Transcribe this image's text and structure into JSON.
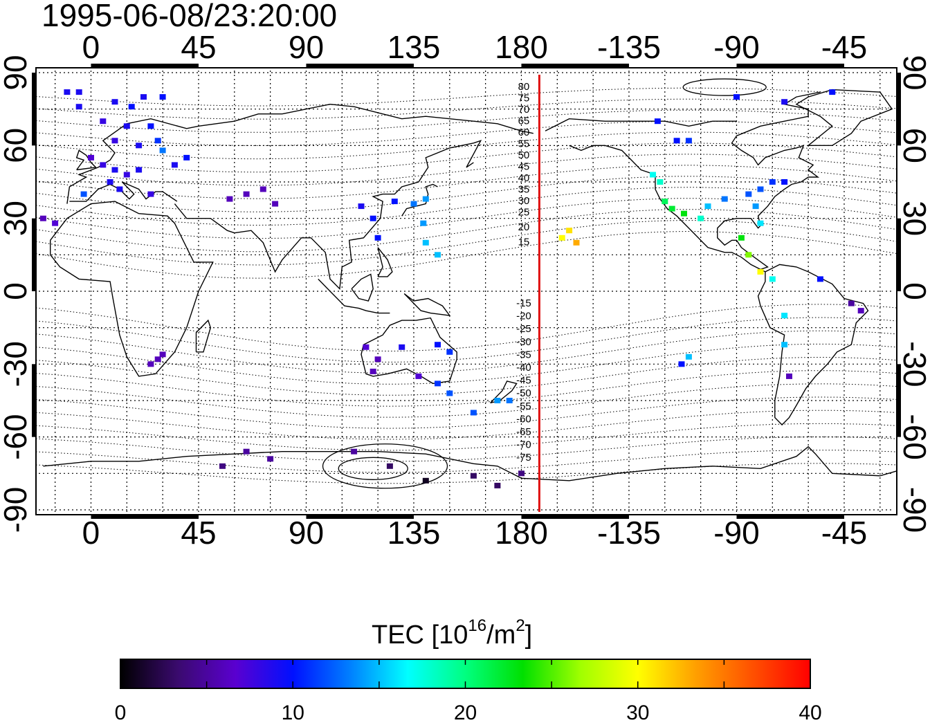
{
  "title": "1995-06-08/23:20:00",
  "map": {
    "lon_ticks": [
      "0",
      "45",
      "90",
      "135",
      "180",
      "-135",
      "-90",
      "-45"
    ],
    "lon_tick_values": [
      0,
      45,
      90,
      135,
      180,
      225,
      270,
      315
    ],
    "lat_ticks": [
      "90",
      "60",
      "30",
      "0",
      "-30",
      "-60",
      "-90"
    ],
    "lat_tick_values": [
      90,
      60,
      30,
      0,
      -30,
      -60,
      -90
    ],
    "lon_range": [
      -23,
      337
    ],
    "lat_range": [
      -92,
      92
    ],
    "grid": true,
    "grid_spacing_deg": 15,
    "terminator_lon": 187.5,
    "terminator_color": "#e01010",
    "mlat_labels_north": [
      "80",
      "75",
      "70",
      "65",
      "60",
      "55",
      "50",
      "45",
      "40",
      "35",
      "30",
      "25",
      "20",
      "15"
    ],
    "mlat_labels_south": [
      "-15",
      "-20",
      "-25",
      "-30",
      "-35",
      "-40",
      "-45",
      "-50",
      "-55",
      "-60",
      "-65",
      "-70",
      "-75"
    ]
  },
  "colorbar": {
    "title_main": "TEC  [10",
    "title_sup": "16",
    "title_mid": "/m",
    "title_sup2": "2",
    "title_end": "]",
    "ticks": [
      "0",
      "10",
      "20",
      "30",
      "40"
    ],
    "tick_values": [
      0,
      10,
      20,
      30,
      40
    ],
    "range": [
      0,
      40
    ],
    "colors": [
      "#000000",
      "#3a0a6e",
      "#5a00d0",
      "#0010ff",
      "#0080ff",
      "#00ffff",
      "#00ff80",
      "#00e000",
      "#a0ff00",
      "#ffff00",
      "#ffa000",
      "#ff5000",
      "#ff0000"
    ]
  },
  "chart_data": {
    "type": "heatmap",
    "description_units": "lon (deg east, 0-360), lat (deg), TEC (1e16/m^2)",
    "cells": [
      {
        "lon": -10,
        "lat": 82,
        "tec": 9
      },
      {
        "lon": -5,
        "lat": 82,
        "tec": 9
      },
      {
        "lon": 22,
        "lat": 80,
        "tec": 9
      },
      {
        "lon": 30,
        "lat": 80,
        "tec": 10
      },
      {
        "lon": 10,
        "lat": 78,
        "tec": 9
      },
      {
        "lon": 17,
        "lat": 76,
        "tec": 10
      },
      {
        "lon": -5,
        "lat": 76,
        "tec": 9
      },
      {
        "lon": 5,
        "lat": 70,
        "tec": 8
      },
      {
        "lon": 15,
        "lat": 68,
        "tec": 9
      },
      {
        "lon": 25,
        "lat": 68,
        "tec": 10
      },
      {
        "lon": 10,
        "lat": 62,
        "tec": 8
      },
      {
        "lon": 20,
        "lat": 60,
        "tec": 9
      },
      {
        "lon": 28,
        "lat": 62,
        "tec": 11
      },
      {
        "lon": 0,
        "lat": 55,
        "tec": 7
      },
      {
        "lon": 5,
        "lat": 52,
        "tec": 8
      },
      {
        "lon": 10,
        "lat": 50,
        "tec": 9
      },
      {
        "lon": 15,
        "lat": 48,
        "tec": 8
      },
      {
        "lon": 20,
        "lat": 50,
        "tec": 9
      },
      {
        "lon": 8,
        "lat": 45,
        "tec": 9
      },
      {
        "lon": -3,
        "lat": 40,
        "tec": 12
      },
      {
        "lon": 12,
        "lat": 42,
        "tec": 9
      },
      {
        "lon": 25,
        "lat": 40,
        "tec": 8
      },
      {
        "lon": -15,
        "lat": 28,
        "tec": 7
      },
      {
        "lon": -20,
        "lat": 30,
        "tec": 6
      },
      {
        "lon": 30,
        "lat": 58,
        "tec": 13
      },
      {
        "lon": 40,
        "lat": 55,
        "tec": 10
      },
      {
        "lon": 35,
        "lat": 52,
        "tec": 9
      },
      {
        "lon": 58,
        "lat": 38,
        "tec": 6
      },
      {
        "lon": 65,
        "lat": 40,
        "tec": 6
      },
      {
        "lon": 72,
        "lat": 42,
        "tec": 6
      },
      {
        "lon": 77,
        "lat": 36,
        "tec": 6
      },
      {
        "lon": 113,
        "lat": 35,
        "tec": 9
      },
      {
        "lon": 118,
        "lat": 30,
        "tec": 10
      },
      {
        "lon": 120,
        "lat": 22,
        "tec": 10
      },
      {
        "lon": 127,
        "lat": 37,
        "tec": 10
      },
      {
        "lon": 135,
        "lat": 36,
        "tec": 13
      },
      {
        "lon": 140,
        "lat": 38,
        "tec": 14
      },
      {
        "lon": 139,
        "lat": 28,
        "tec": 14
      },
      {
        "lon": 140,
        "lat": 20,
        "tec": 15
      },
      {
        "lon": 145,
        "lat": 15,
        "tec": 15
      },
      {
        "lon": 115,
        "lat": -23,
        "tec": 7
      },
      {
        "lon": 120,
        "lat": -28,
        "tec": 6
      },
      {
        "lon": 118,
        "lat": -33,
        "tec": 6
      },
      {
        "lon": 130,
        "lat": -23,
        "tec": 9
      },
      {
        "lon": 137,
        "lat": -35,
        "tec": 7
      },
      {
        "lon": 145,
        "lat": -22,
        "tec": 10
      },
      {
        "lon": 150,
        "lat": -25,
        "tec": 11
      },
      {
        "lon": 145,
        "lat": -38,
        "tec": 11
      },
      {
        "lon": 150,
        "lat": -42,
        "tec": 12
      },
      {
        "lon": 170,
        "lat": -45,
        "tec": 14
      },
      {
        "lon": 175,
        "lat": -45,
        "tec": 13
      },
      {
        "lon": 160,
        "lat": -50,
        "tec": 12
      },
      {
        "lon": 28,
        "lat": -28,
        "tec": 6
      },
      {
        "lon": 25,
        "lat": -30,
        "tec": 6
      },
      {
        "lon": 30,
        "lat": -26,
        "tec": 6
      },
      {
        "lon": 65,
        "lat": -66,
        "tec": 5
      },
      {
        "lon": 75,
        "lat": -69,
        "tec": 5
      },
      {
        "lon": 55,
        "lat": -72,
        "tec": 4
      },
      {
        "lon": 110,
        "lat": -66,
        "tec": 5
      },
      {
        "lon": 125,
        "lat": -72,
        "tec": 3
      },
      {
        "lon": 140,
        "lat": -78,
        "tec": 1
      },
      {
        "lon": 160,
        "lat": -76,
        "tec": 3
      },
      {
        "lon": 170,
        "lat": -80,
        "tec": 3
      },
      {
        "lon": 180,
        "lat": -75,
        "tec": 4
      },
      {
        "lon": 197,
        "lat": 22,
        "tec": 30
      },
      {
        "lon": 200,
        "lat": 25,
        "tec": 31
      },
      {
        "lon": 203,
        "lat": 20,
        "tec": 33
      },
      {
        "lon": 237,
        "lat": 70,
        "tec": 10
      },
      {
        "lon": 245,
        "lat": 62,
        "tec": 10
      },
      {
        "lon": 250,
        "lat": 62,
        "tec": 11
      },
      {
        "lon": 235,
        "lat": 48,
        "tec": 17
      },
      {
        "lon": 238,
        "lat": 45,
        "tec": 18
      },
      {
        "lon": 240,
        "lat": 37,
        "tec": 21
      },
      {
        "lon": 243,
        "lat": 34,
        "tec": 22
      },
      {
        "lon": 248,
        "lat": 32,
        "tec": 23
      },
      {
        "lon": 255,
        "lat": 30,
        "tec": 18
      },
      {
        "lon": 258,
        "lat": 35,
        "tec": 15
      },
      {
        "lon": 265,
        "lat": 38,
        "tec": 13
      },
      {
        "lon": 275,
        "lat": 40,
        "tec": 12
      },
      {
        "lon": 280,
        "lat": 42,
        "tec": 12
      },
      {
        "lon": 285,
        "lat": 45,
        "tec": 11
      },
      {
        "lon": 290,
        "lat": 45,
        "tec": 10
      },
      {
        "lon": 278,
        "lat": 35,
        "tec": 14
      },
      {
        "lon": 280,
        "lat": 28,
        "tec": 16
      },
      {
        "lon": 272,
        "lat": 22,
        "tec": 23
      },
      {
        "lon": 275,
        "lat": 15,
        "tec": 26
      },
      {
        "lon": 280,
        "lat": 8,
        "tec": 30
      },
      {
        "lon": 285,
        "lat": 5,
        "tec": 17
      },
      {
        "lon": 270,
        "lat": 80,
        "tec": 10
      },
      {
        "lon": 290,
        "lat": 78,
        "tec": 9
      },
      {
        "lon": 310,
        "lat": 82,
        "tec": 10
      },
      {
        "lon": 305,
        "lat": 5,
        "tec": 10
      },
      {
        "lon": 318,
        "lat": -5,
        "tec": 5
      },
      {
        "lon": 322,
        "lat": -8,
        "tec": 6
      },
      {
        "lon": 290,
        "lat": -10,
        "tec": 16
      },
      {
        "lon": 290,
        "lat": -22,
        "tec": 15
      },
      {
        "lon": 292,
        "lat": -35,
        "tec": 6
      },
      {
        "lon": 250,
        "lat": -27,
        "tec": 15
      },
      {
        "lon": 247,
        "lat": -30,
        "tec": 10
      }
    ]
  }
}
